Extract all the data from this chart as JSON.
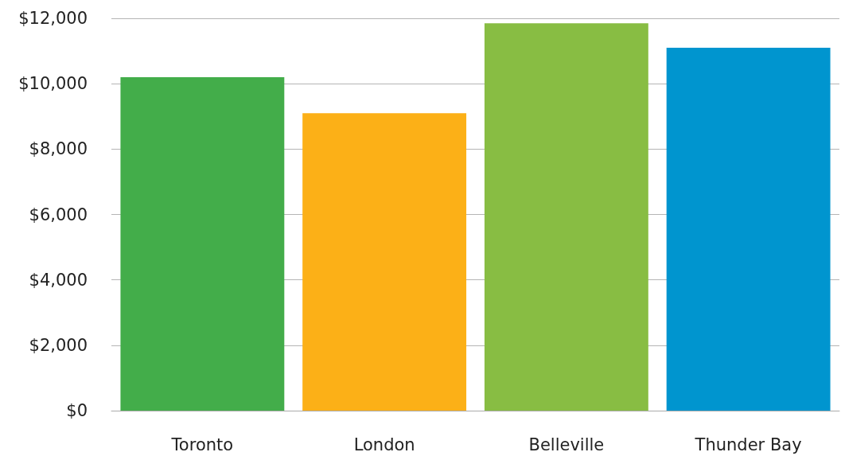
{
  "chart_data": {
    "type": "bar",
    "categories": [
      "Toronto",
      "London",
      "Belleville",
      "Thunder Bay"
    ],
    "values": [
      10200,
      9100,
      11850,
      11100
    ],
    "colors": [
      "#43ad4a",
      "#fcb017",
      "#88bd43",
      "#0095cf"
    ],
    "ylim": [
      0,
      12000
    ],
    "yticks": [
      {
        "value": 0,
        "label": "$0"
      },
      {
        "value": 2000,
        "label": "$2,000"
      },
      {
        "value": 4000,
        "label": "$4,000"
      },
      {
        "value": 6000,
        "label": "$6,000"
      },
      {
        "value": 8000,
        "label": "$8,000"
      },
      {
        "value": 10000,
        "label": "$10,000"
      },
      {
        "value": 12000,
        "label": "$12,000"
      }
    ],
    "grid": "y"
  }
}
